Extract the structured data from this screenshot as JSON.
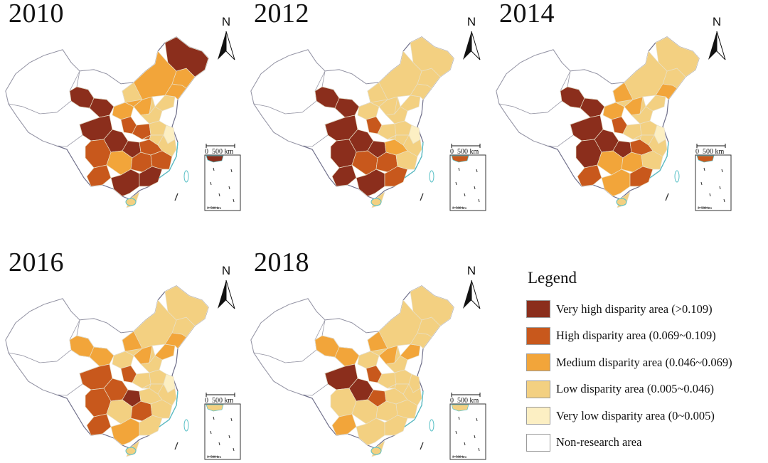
{
  "maps": [
    {
      "year": "2010",
      "scale_zero": "0",
      "scale_label": "500 km",
      "inset_zero": "0",
      "inset_label": "500 km",
      "regions": [
        "vh",
        "vh",
        "vh",
        "vh",
        "med",
        "h",
        "vh",
        "h",
        "h",
        "med",
        "vh",
        "h",
        "vh",
        "h",
        "h",
        "med",
        "low",
        "h",
        "low",
        "vlow",
        "low",
        "low",
        "h",
        "low",
        "med",
        "med",
        "vh",
        "med",
        "low",
        "low",
        "low"
      ]
    },
    {
      "year": "2012",
      "scale_zero": "0",
      "scale_label": "500 km",
      "inset_zero": "0",
      "inset_label": "500 km",
      "regions": [
        "vh",
        "vh",
        "vh",
        "vh",
        "low",
        "h",
        "vh",
        "vh",
        "vh",
        "h",
        "vh",
        "h",
        "h",
        "low",
        "med",
        "low",
        "low",
        "low",
        "low",
        "vlow",
        "low",
        "low",
        "low",
        "low",
        "low",
        "low",
        "low",
        "low",
        "low",
        "low",
        "low"
      ]
    },
    {
      "year": "2014",
      "scale_zero": "0",
      "scale_label": "500 km",
      "inset_zero": "0",
      "inset_label": "500 km",
      "regions": [
        "vh",
        "vh",
        "vh",
        "vh",
        "med",
        "h",
        "vh",
        "vh",
        "h",
        "med",
        "med",
        "med",
        "h",
        "low",
        "h",
        "med",
        "low",
        "low",
        "low",
        "vlow",
        "low",
        "low",
        "low",
        "low",
        "med",
        "low",
        "low",
        "low",
        "med",
        "low",
        "low"
      ]
    },
    {
      "year": "2016",
      "scale_zero": "0",
      "scale_label": "500 km",
      "inset_zero": "0",
      "inset_label": "500 km",
      "regions": [
        "med",
        "med",
        "h",
        "h",
        "low",
        "h",
        "vh",
        "h",
        "h",
        "low",
        "med",
        "h",
        "low",
        "low",
        "low",
        "med",
        "low",
        "low",
        "low",
        "vlow",
        "low",
        "low",
        "low",
        "med",
        "med",
        "low",
        "low",
        "low",
        "med",
        "low",
        "low"
      ]
    },
    {
      "year": "2018",
      "scale_zero": "0",
      "scale_label": "500 km",
      "inset_zero": "0",
      "inset_label": "500 km",
      "regions": [
        "med",
        "med",
        "vh",
        "vh",
        "low",
        "h",
        "h",
        "low",
        "med",
        "low",
        "low",
        "low",
        "low",
        "low",
        "low",
        "med",
        "low",
        "low",
        "low",
        "low",
        "low",
        "low",
        "low",
        "med",
        "low",
        "low",
        "low",
        "low",
        "med",
        "low",
        "low"
      ]
    }
  ],
  "north_arrow_label": "N",
  "legend": {
    "title": "Legend",
    "items": [
      {
        "key": "vh",
        "label": "Very high disparity area (>0.109)",
        "color": "#8b2e1c"
      },
      {
        "key": "h",
        "label": "High disparity area (0.069~0.109)",
        "color": "#c8581c"
      },
      {
        "key": "med",
        "label": "Medium disparity area (0.046~0.069)",
        "color": "#f2a53a"
      },
      {
        "key": "low",
        "label": "Low disparity area (0.005~0.046)",
        "color": "#f3d081"
      },
      {
        "key": "vlow",
        "label": "Very low disparity area (0~0.005)",
        "color": "#fcefc3"
      },
      {
        "key": "none",
        "label": "Non-research area",
        "color": "#ffffff"
      }
    ]
  }
}
